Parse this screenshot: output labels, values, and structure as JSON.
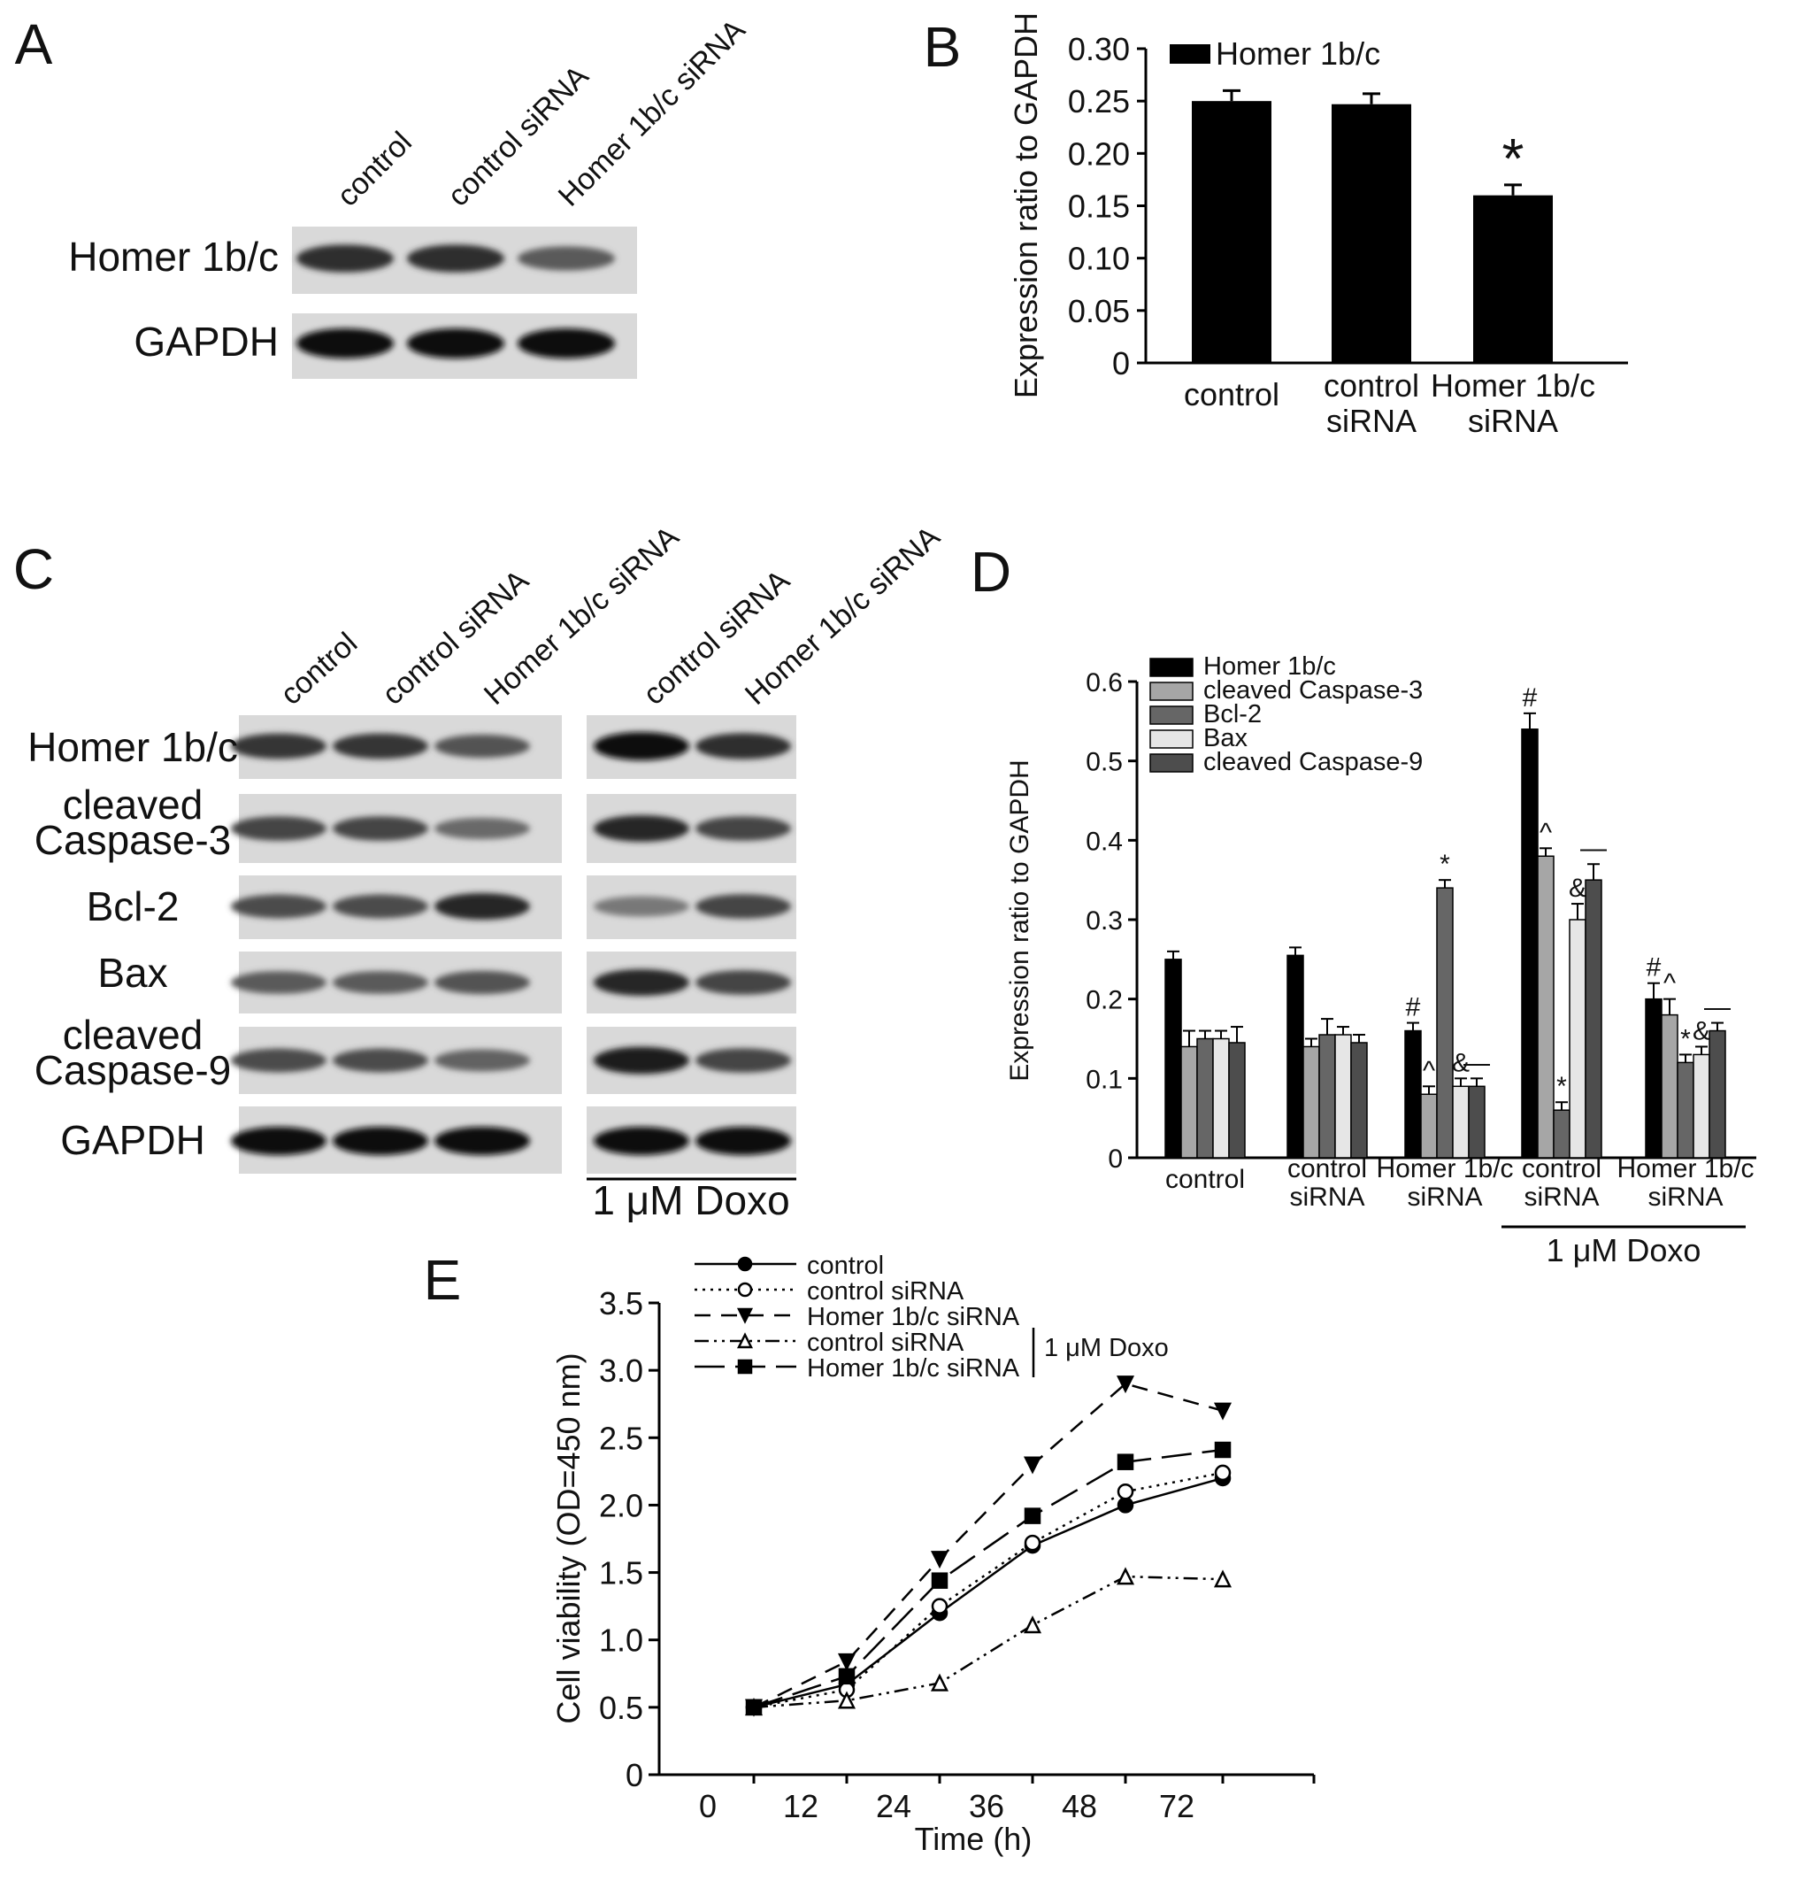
{
  "panels": {
    "A": {
      "label": "A",
      "lanes": [
        "control",
        "control siRNA",
        "Homer 1b/c siRNA"
      ],
      "rows": [
        {
          "label": "Homer 1b/c",
          "intensity": [
            0.8,
            0.8,
            0.5
          ]
        },
        {
          "label": "GAPDH",
          "intensity": [
            1.0,
            1.0,
            1.0
          ]
        }
      ]
    },
    "C": {
      "label": "C",
      "lanes": [
        "control",
        "control siRNA",
        "Homer 1b/c  siRNA",
        "control siRNA",
        "Homer 1b/c  siRNA"
      ],
      "doxo_label": "1 μM Doxo",
      "rows": [
        {
          "label_lines": [
            "Homer 1b/c"
          ],
          "intensity": [
            0.75,
            0.75,
            0.55,
            1.0,
            0.8
          ]
        },
        {
          "label_lines": [
            "cleaved",
            "Caspase-3"
          ],
          "intensity": [
            0.65,
            0.65,
            0.4,
            0.85,
            0.65
          ]
        },
        {
          "label_lines": [
            "Bcl-2"
          ],
          "intensity": [
            0.6,
            0.6,
            0.85,
            0.3,
            0.65
          ]
        },
        {
          "label_lines": [
            "Bax"
          ],
          "intensity": [
            0.5,
            0.5,
            0.55,
            0.85,
            0.65
          ]
        },
        {
          "label_lines": [
            "cleaved",
            "Caspase-9"
          ],
          "intensity": [
            0.6,
            0.6,
            0.45,
            0.9,
            0.65
          ]
        },
        {
          "label_lines": [
            "GAPDH"
          ],
          "intensity": [
            1.0,
            1.0,
            1.0,
            1.0,
            1.0
          ]
        }
      ]
    },
    "B": {
      "label": "B"
    },
    "D": {
      "label": "D"
    },
    "E": {
      "label": "E"
    }
  },
  "chart_data": [
    {
      "panel": "B",
      "type": "bar",
      "categories": [
        [
          "control"
        ],
        [
          "control",
          "siRNA"
        ],
        [
          "Homer 1b/c",
          "siRNA"
        ]
      ],
      "series": [
        {
          "name": "Homer 1b/c",
          "color": "#000000",
          "values": [
            0.25,
            0.247,
            0.16
          ],
          "errors": [
            0.01,
            0.01,
            0.01
          ]
        }
      ],
      "annotations": [
        {
          "category": 2,
          "text": "*"
        }
      ],
      "ylabel": "Expression ratio to GAPDH",
      "ylim": [
        0,
        0.3
      ],
      "yticks": [
        "0",
        "0.05",
        "0.10",
        "0.15",
        "0.20",
        "0.25",
        "0.30"
      ],
      "legend": "top-left"
    },
    {
      "panel": "D",
      "type": "bar",
      "categories": [
        [
          "control"
        ],
        [
          "control",
          "siRNA"
        ],
        [
          "Homer 1b/c",
          "siRNA"
        ],
        [
          "control",
          "siRNA"
        ],
        [
          "Homer 1b/c",
          "siRNA"
        ]
      ],
      "group_label": {
        "text": "1 μM Doxo",
        "categories": [
          3,
          4
        ]
      },
      "series": [
        {
          "name": "Homer 1b/c",
          "color": "#000000",
          "values": [
            0.25,
            0.255,
            0.16,
            0.54,
            0.2
          ],
          "errors": [
            0.01,
            0.01,
            0.01,
            0.02,
            0.02
          ],
          "marks": [
            "",
            "",
            "#",
            "#",
            "#"
          ]
        },
        {
          "name": "cleaved Caspase-3",
          "color": "#a6a6a6",
          "values": [
            0.14,
            0.14,
            0.08,
            0.38,
            0.18
          ],
          "errors": [
            0.02,
            0.01,
            0.01,
            0.01,
            0.02
          ],
          "marks": [
            "",
            "",
            "^",
            "^",
            "^"
          ]
        },
        {
          "name": "Bcl-2",
          "color": "#666666",
          "values": [
            0.15,
            0.155,
            0.34,
            0.06,
            0.12
          ],
          "errors": [
            0.01,
            0.02,
            0.01,
            0.01,
            0.01
          ],
          "marks": [
            "",
            "",
            "*",
            "*",
            "*"
          ]
        },
        {
          "name": "Bax",
          "color": "#e6e6e6",
          "values": [
            0.15,
            0.155,
            0.09,
            0.3,
            0.13
          ],
          "errors": [
            0.01,
            0.01,
            0.01,
            0.02,
            0.01
          ],
          "marks": [
            "",
            "",
            "&",
            "&",
            "&"
          ]
        },
        {
          "name": "cleaved Caspase-9",
          "color": "#4d4d4d",
          "values": [
            0.145,
            0.145,
            0.09,
            0.35,
            0.16
          ],
          "errors": [
            0.02,
            0.01,
            0.01,
            0.02,
            0.01
          ],
          "marks": [
            "",
            "",
            "—",
            "—",
            "—"
          ]
        }
      ],
      "ylabel": "Expression ratio to GAPDH",
      "ylim": [
        0,
        0.6
      ],
      "yticks": [
        "0",
        "0.1",
        "0.2",
        "0.3",
        "0.4",
        "0.5",
        "0.6"
      ],
      "legend": "top-left"
    },
    {
      "panel": "E",
      "type": "line",
      "x_categories": [
        "0",
        "12",
        "24",
        "36",
        "48",
        "72"
      ],
      "series": [
        {
          "name": "control",
          "marker": "circle-filled",
          "dash": "solid",
          "values": [
            0.5,
            0.67,
            1.2,
            1.7,
            2.0,
            2.2
          ]
        },
        {
          "name": "control siRNA",
          "marker": "circle-open",
          "dash": "dotted",
          "values": [
            0.5,
            0.63,
            1.25,
            1.72,
            2.1,
            2.24
          ]
        },
        {
          "name": "Homer 1b/c siRNA",
          "marker": "triangle-down-filled",
          "dash": "dashed",
          "values": [
            0.5,
            0.84,
            1.6,
            2.3,
            2.9,
            2.7
          ]
        },
        {
          "name": "control siRNA",
          "marker": "triangle-up-open",
          "dash": "dash-dot-dot",
          "values": [
            0.5,
            0.55,
            0.68,
            1.11,
            1.47,
            1.45
          ]
        },
        {
          "name": "Homer 1b/c siRNA",
          "marker": "square-filled",
          "dash": "long-dash",
          "values": [
            0.5,
            0.73,
            1.44,
            1.92,
            2.32,
            2.41
          ]
        }
      ],
      "legend_group": {
        "text": "1 μM Doxo",
        "series": [
          3,
          4
        ]
      },
      "xlabel": "Time  (h)",
      "ylabel": "Cell viability (OD=450 nm)",
      "ylim": [
        0,
        3.5
      ],
      "yticks": [
        "0",
        "0.5",
        "1.0",
        "1.5",
        "2.0",
        "2.5",
        "3.0",
        "3.5"
      ],
      "legend": "top-left"
    }
  ]
}
